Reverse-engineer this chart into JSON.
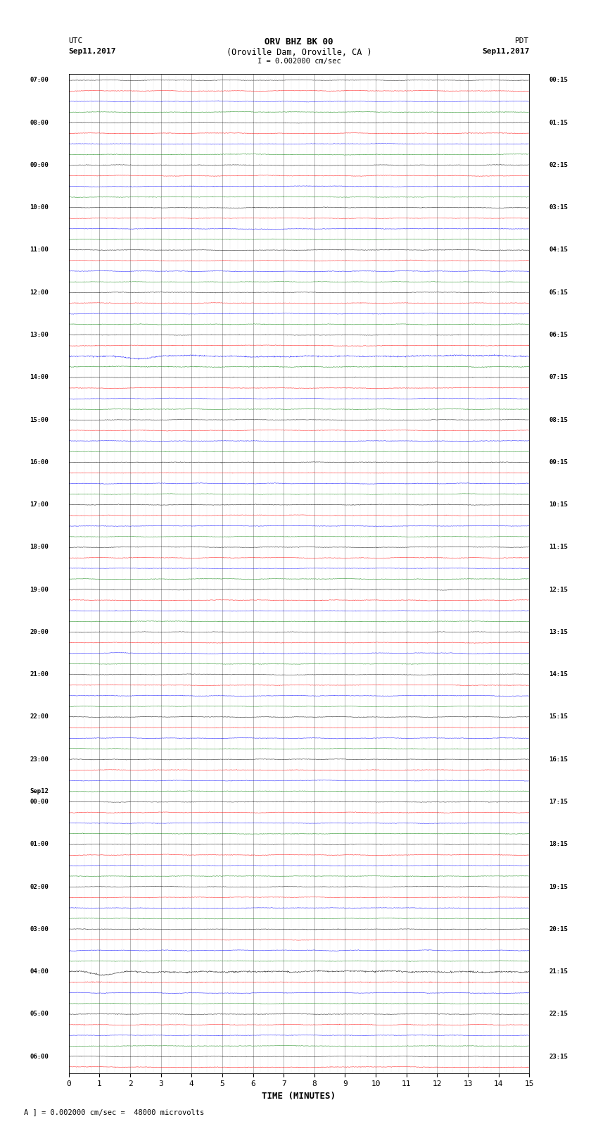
{
  "title_line1": "ORV BHZ BK 00",
  "title_line2": "(Oroville Dam, Oroville, CA )",
  "title_line3": "I = 0.002000 cm/sec",
  "left_header_line1": "UTC",
  "left_header_line2": "Sep11,2017",
  "right_header_line1": "PDT",
  "right_header_line2": "Sep11,2017",
  "footer": "A ] = 0.002000 cm/sec =  48000 microvolts",
  "xlabel": "TIME (MINUTES)",
  "xmin": 0,
  "xmax": 15,
  "xticks": [
    0,
    1,
    2,
    3,
    4,
    5,
    6,
    7,
    8,
    9,
    10,
    11,
    12,
    13,
    14,
    15
  ],
  "row_colors_cycle": [
    "black",
    "red",
    "blue",
    "green"
  ],
  "background_color": "#ffffff",
  "grid_major_color": "#444444",
  "grid_minor_color": "#aaaaaa",
  "noise_amplitude_base": 0.3,
  "left_labels": [
    [
      "07:00",
      0
    ],
    [
      "08:00",
      4
    ],
    [
      "09:00",
      8
    ],
    [
      "10:00",
      12
    ],
    [
      "11:00",
      16
    ],
    [
      "12:00",
      20
    ],
    [
      "13:00",
      24
    ],
    [
      "14:00",
      28
    ],
    [
      "15:00",
      32
    ],
    [
      "16:00",
      36
    ],
    [
      "17:00",
      40
    ],
    [
      "18:00",
      44
    ],
    [
      "19:00",
      48
    ],
    [
      "20:00",
      52
    ],
    [
      "21:00",
      56
    ],
    [
      "22:00",
      60
    ],
    [
      "23:00",
      64
    ],
    [
      "Sep12",
      67
    ],
    [
      "00:00",
      68
    ],
    [
      "01:00",
      72
    ],
    [
      "02:00",
      76
    ],
    [
      "03:00",
      80
    ],
    [
      "04:00",
      84
    ],
    [
      "05:00",
      88
    ],
    [
      "06:00",
      92
    ]
  ],
  "right_labels": [
    [
      "00:15",
      0
    ],
    [
      "01:15",
      4
    ],
    [
      "02:15",
      8
    ],
    [
      "03:15",
      12
    ],
    [
      "04:15",
      16
    ],
    [
      "05:15",
      20
    ],
    [
      "06:15",
      24
    ],
    [
      "07:15",
      28
    ],
    [
      "08:15",
      32
    ],
    [
      "09:15",
      36
    ],
    [
      "10:15",
      40
    ],
    [
      "11:15",
      44
    ],
    [
      "12:15",
      48
    ],
    [
      "13:15",
      52
    ],
    [
      "14:15",
      56
    ],
    [
      "15:15",
      60
    ],
    [
      "16:15",
      64
    ],
    [
      "17:15",
      68
    ],
    [
      "18:15",
      72
    ],
    [
      "19:15",
      76
    ],
    [
      "20:15",
      80
    ],
    [
      "21:15",
      84
    ],
    [
      "22:15",
      88
    ],
    [
      "23:15",
      92
    ]
  ],
  "total_traces": 94,
  "special_trace_blue_big": 26,
  "special_trace_red_big": 84
}
